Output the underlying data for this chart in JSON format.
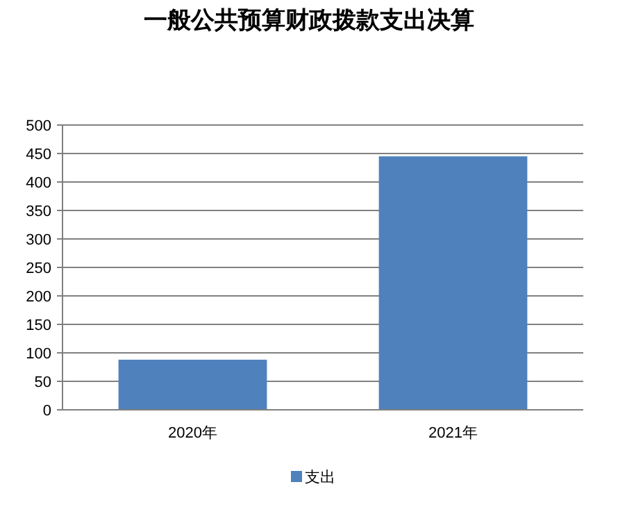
{
  "chart_data": {
    "type": "bar",
    "title": "一般公共预算财政拨款支出决算",
    "categories": [
      "2020年",
      "2021年"
    ],
    "series": [
      {
        "name": "支出",
        "color": "#4f81bd",
        "values": [
          88,
          445
        ]
      }
    ],
    "ylim": [
      0,
      500
    ],
    "yticks": [
      0,
      50,
      100,
      150,
      200,
      250,
      300,
      350,
      400,
      450,
      500
    ],
    "grid": "y",
    "legend": "bottom"
  }
}
